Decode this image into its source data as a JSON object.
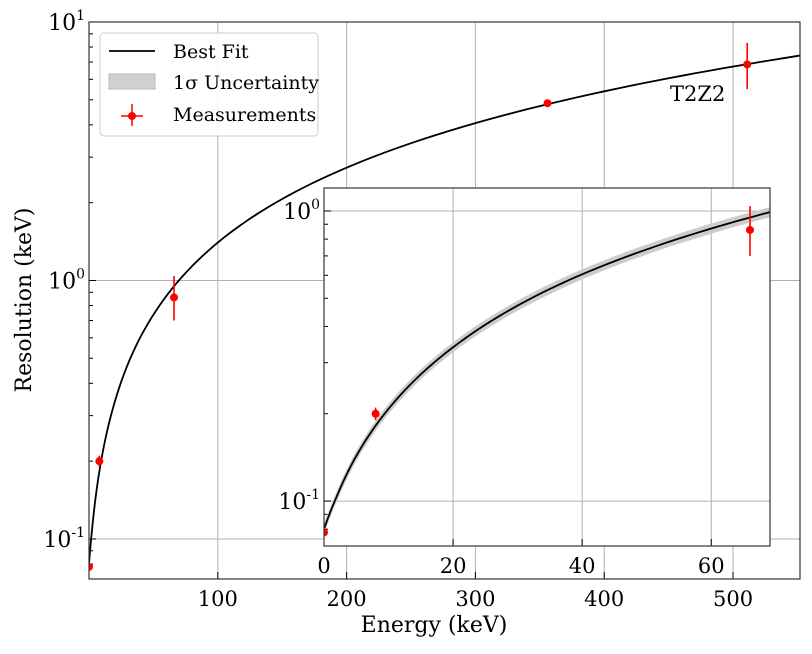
{
  "chart_data": {
    "type": "line",
    "xscale": "linear",
    "yscale": "log",
    "xlabel": "Energy (keV)",
    "ylabel": "Resolution (keV)",
    "xlim": [
      0,
      552
    ],
    "ylim": [
      0.07,
      10
    ],
    "xticks": [
      100,
      200,
      300,
      400,
      500
    ],
    "yticks": [
      {
        "value": 0.1,
        "base": "10",
        "exp": "-1"
      },
      {
        "value": 1,
        "base": "10",
        "exp": "0"
      },
      {
        "value": 10,
        "base": "10",
        "exp": "1"
      }
    ],
    "grid": true,
    "annotation": "T2Z2",
    "legend": {
      "placement": "top-left",
      "entries": [
        {
          "label": "Best Fit",
          "kind": "line",
          "color": "#000000"
        },
        {
          "label": "1σ Uncertainty",
          "kind": "band",
          "color": "#cccccc"
        },
        {
          "label": "Measurements",
          "kind": "errorbar",
          "color": "#ff0000"
        }
      ]
    },
    "best_fit": {
      "energy": [
        0,
        2,
        5,
        10,
        20,
        30,
        40,
        50,
        60,
        70,
        80,
        100,
        150,
        200,
        300,
        400,
        500,
        555
      ],
      "resolution": [
        0.08,
        0.104,
        0.143,
        0.208,
        0.339,
        0.472,
        0.605,
        0.737,
        0.87,
        1.003,
        1.136,
        1.402,
        2.067,
        2.732,
        4.063,
        5.393,
        6.724,
        7.455
      ],
      "uncertainty_fraction": 0.04
    },
    "measurements": [
      {
        "energy": 0,
        "resolution": 0.078,
        "err_low": 0.077,
        "err_high": 0.079
      },
      {
        "energy": 8,
        "resolution": 0.2,
        "err_low": 0.19,
        "err_high": 0.21
      },
      {
        "energy": 66,
        "resolution": 0.86,
        "err_low": 0.7,
        "err_high": 1.04
      },
      {
        "energy": 356,
        "resolution": 4.85,
        "err_low": 4.75,
        "err_high": 4.95
      },
      {
        "energy": 511,
        "resolution": 6.85,
        "err_low": 5.5,
        "err_high": 8.3
      }
    ],
    "inset": {
      "xlim": [
        0,
        69.1
      ],
      "ylim": [
        0.07,
        1.2
      ],
      "xticks": [
        0,
        20,
        40,
        60
      ],
      "yticks": [
        {
          "value": 0.1,
          "base": "10",
          "exp": "-1"
        },
        {
          "value": 1,
          "base": "10",
          "exp": "0"
        }
      ],
      "grid": true
    },
    "colors": {
      "fit": "#000000",
      "band": "#cccccc",
      "points": "#ff0000",
      "grid": "#b0b0b0"
    }
  }
}
